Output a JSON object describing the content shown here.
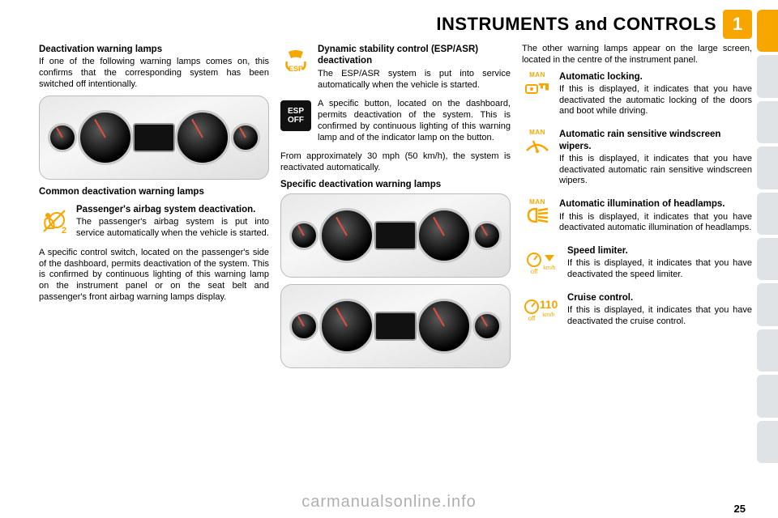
{
  "header": {
    "title": "INSTRUMENTS and CONTROLS",
    "chapter": "1"
  },
  "pageNumber": "25",
  "watermark": "carmanualsonline.info",
  "colors": {
    "accent": "#f7a600",
    "warnAmber": "#f7a600",
    "espText": "#f7a600",
    "espOffBg": "#111111",
    "tabActive": "#f7a600",
    "tabInactive": "#dfe3e6"
  },
  "rightTabs": [
    {
      "color": "#f7a600"
    },
    {
      "color": "#dfe3e6"
    },
    {
      "color": "#dfe3e6"
    },
    {
      "color": "#dfe3e6"
    },
    {
      "color": "#dfe3e6"
    },
    {
      "color": "#dfe3e6"
    },
    {
      "color": "#dfe3e6"
    },
    {
      "color": "#dfe3e6"
    },
    {
      "color": "#dfe3e6"
    },
    {
      "color": "#dfe3e6"
    }
  ],
  "col1": {
    "h1": "Deactivation warning lamps",
    "p1": "If one of the following warning lamps comes on, this confirms that the corresponding system has been switched off intentionally.",
    "caption1": "Common deactivation warning lamps",
    "airbag": {
      "title": "Passenger's airbag system deactivation.",
      "body": "The passenger's airbag system is put into service automatically when the vehicle is started."
    },
    "p2": "A specific control switch, located on the passenger's side of the dashboard, permits deactivation of the system. This is confirmed by continuous lighting of this warning lamp on the instrument panel or on the seat belt and passenger's front airbag warning lamps display."
  },
  "col2": {
    "esp": {
      "title": "Dynamic stability control (ESP/ASR) deactivation",
      "body": "The ESP/ASR system is put into service automatically when the vehicle is started."
    },
    "espOff": {
      "body": "A specific button, located on the dashboard, permits deactivation of the system. This is confirmed by continuous lighting of this warning lamp and of the indicator lamp on the button."
    },
    "p1": "From approximately 30 mph (50 km/h), the system is reactivated automatically.",
    "caption1": "Specific deactivation warning lamps"
  },
  "col3": {
    "p1": "The other warning lamps appear on the large screen, located in the centre of the instrument panel.",
    "items": [
      {
        "man": true,
        "icon": "lock",
        "title": "Automatic locking.",
        "body": "If this is displayed, it indicates that you have deactivated the automatic locking of the doors and boot while driving."
      },
      {
        "man": true,
        "icon": "wiper",
        "title": "Automatic rain sensitive windscreen wipers.",
        "body": "If this is displayed, it indicates that you have deactivated automatic rain sensitive windscreen wipers."
      },
      {
        "man": true,
        "icon": "headlamp",
        "title": "Automatic illumination of headlamps.",
        "body": "If this is displayed, it indicates that you have deactivated automatic illumination of headlamps."
      },
      {
        "man": false,
        "icon": "speedlimiter",
        "title": "Speed limiter.",
        "body": "If this is displayed, it indicates that you have deactivated the speed limiter."
      },
      {
        "man": false,
        "icon": "cruise",
        "title": "Cruise control.",
        "body": "If this is displayed, it indicates that you have deactivated the cruise control."
      }
    ],
    "manLabel": "MAN"
  }
}
